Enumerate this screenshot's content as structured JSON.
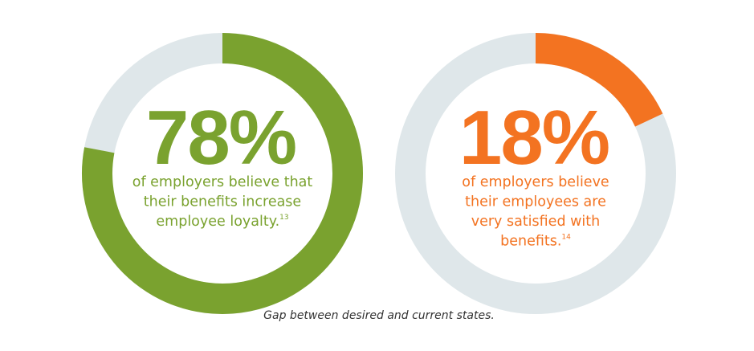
{
  "chart_data": [
    {
      "type": "donut",
      "values": [
        78
      ],
      "value_labels": [
        "78%"
      ],
      "total": 100,
      "color": "#7aa22f",
      "track_color": "#dfe7ea",
      "description_lines": [
        "of employers believe that",
        "their benefits increase",
        "employee loyalty."
      ],
      "footnote": "13"
    },
    {
      "type": "donut",
      "values": [
        18
      ],
      "value_labels": [
        "18%"
      ],
      "total": 100,
      "color": "#f37321",
      "track_color": "#dfe7ea",
      "description_lines": [
        "of employers believe",
        "their employees are",
        "very satisfied with",
        "benefits."
      ],
      "footnote": "14"
    }
  ],
  "caption": "Gap between desired and current states."
}
